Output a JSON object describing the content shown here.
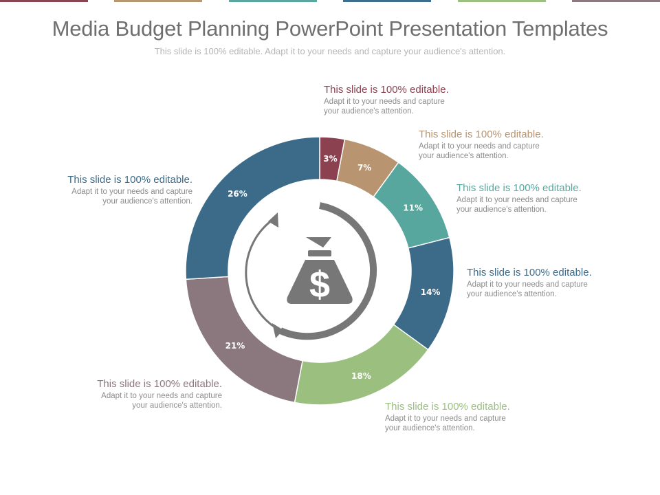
{
  "header": {
    "title": "Media Budget Planning PowerPoint Presentation Templates",
    "subtitle": "This slide is 100% editable. Adapt it to your needs and capture your audience's attention."
  },
  "top_bar_colors": [
    "#8a4553",
    "#b59770",
    "#5aa79f",
    "#3f6f8e",
    "#9bc07f",
    "#8c7a80"
  ],
  "center_icon": "money-bag-dollar-icon",
  "chart_data": {
    "type": "pie",
    "variant": "donut",
    "title": "",
    "slices": [
      {
        "value": 3,
        "label": "3%",
        "color": "#8b4150"
      },
      {
        "value": 7,
        "label": "7%",
        "color": "#b89570"
      },
      {
        "value": 11,
        "label": "11%",
        "color": "#58a79e"
      },
      {
        "value": 14,
        "label": "14%",
        "color": "#3c6b89"
      },
      {
        "value": 18,
        "label": "18%",
        "color": "#9abf7f"
      },
      {
        "value": 21,
        "label": "21%",
        "color": "#8b777e"
      },
      {
        "value": 26,
        "label": "26%",
        "color": "#3c6b89"
      }
    ]
  },
  "callouts": [
    {
      "heading": "This slide is 100% editable.",
      "body_line1": "Adapt it to your needs and capture",
      "body_line2": "your audience's attention.",
      "color": "#8b4150"
    },
    {
      "heading": "This slide is 100% editable.",
      "body_line1": "Adapt it to your needs and capture",
      "body_line2": "your audience's attention.",
      "color": "#b89570"
    },
    {
      "heading": "This slide is 100% editable.",
      "body_line1": "Adapt it to your needs and capture",
      "body_line2": "your audience's attention.",
      "color": "#58a79e"
    },
    {
      "heading": "This slide is 100% editable.",
      "body_line1": "Adapt it to your needs and capture",
      "body_line2": "your audience's attention.",
      "color": "#3c6b89"
    },
    {
      "heading": "This slide is 100% editable.",
      "body_line1": "Adapt it to your needs and capture",
      "body_line2": "your audience's attention.",
      "color": "#9abf7f"
    },
    {
      "heading": "This slide is 100% editable.",
      "body_line1": "Adapt it to your needs and capture",
      "body_line2": "your audience's attention.",
      "color": "#8b777e"
    },
    {
      "heading": "This slide is 100% editable.",
      "body_line1": "Adapt it to your needs and capture",
      "body_line2": "your audience's attention.",
      "color": "#3c6b89"
    }
  ]
}
